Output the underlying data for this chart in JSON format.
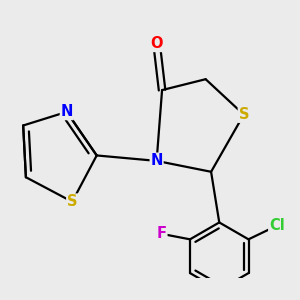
{
  "bg_color": "#ebebeb",
  "bond_color": "#000000",
  "atom_colors": {
    "O": "#ff0000",
    "N": "#0000ff",
    "S": "#ccaa00",
    "Cl": "#33cc33",
    "F": "#cc00cc"
  },
  "lw": 1.6,
  "fs": 10.5
}
